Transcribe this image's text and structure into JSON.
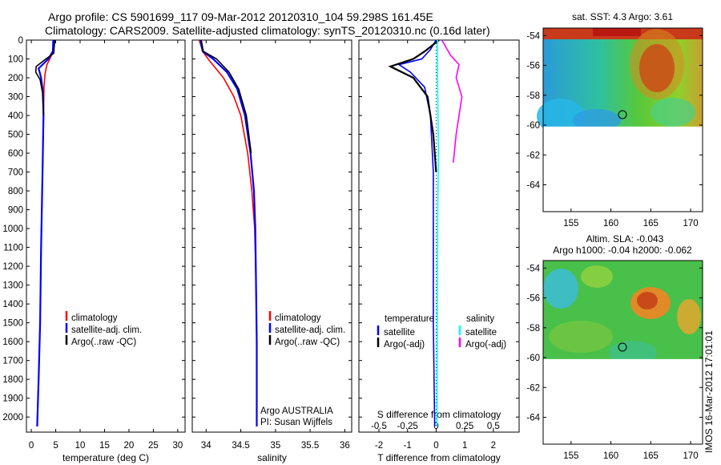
{
  "header": {
    "line1": "Argo profile: CS 5901699_117 09-Mar-2012 20120310_104 59.298S 161.45E",
    "line2": "Climatology: CARS2009. Satellite-adjusted climatology: synTS_20120310.nc (0.16d later)"
  },
  "side_text": "IMOS 16-Mar-2012 17:01:01",
  "chart_data": [
    {
      "type": "line",
      "id": "temperature",
      "xlabel": "temperature (deg C)",
      "ylabel": "",
      "xlim": [
        -1,
        31.5
      ],
      "ylim": [
        2080,
        0
      ],
      "xticks": [
        0,
        5,
        10,
        15,
        20,
        25,
        30
      ],
      "yticks": [
        0,
        100,
        200,
        300,
        400,
        500,
        600,
        700,
        800,
        900,
        1000,
        1100,
        1200,
        1300,
        1400,
        1500,
        1600,
        1700,
        1800,
        1900,
        2000
      ],
      "legend": [
        "climatology",
        "satellite-adj. clim.",
        "Argo(..raw -QC)"
      ],
      "legend_location": "lower-center",
      "series": [
        {
          "name": "climatology",
          "color": "#ff0000",
          "points": [
            [
              4.6,
              0
            ],
            [
              4.5,
              60
            ],
            [
              3.8,
              100
            ],
            [
              3.2,
              130
            ],
            [
              2.8,
              180
            ],
            [
              2.6,
              250
            ],
            [
              2.5,
              400
            ],
            [
              2.3,
              700
            ],
            [
              2.0,
              1100
            ],
            [
              1.8,
              1500
            ],
            [
              1.5,
              1800
            ],
            [
              1.2,
              2050
            ]
          ]
        },
        {
          "name": "satellite-adj. clim.",
          "color": "#0000ff",
          "points": [
            [
              4.5,
              0
            ],
            [
              4.4,
              60
            ],
            [
              3.5,
              100
            ],
            [
              1.5,
              150
            ],
            [
              2.0,
              200
            ],
            [
              2.4,
              280
            ],
            [
              2.5,
              400
            ],
            [
              2.3,
              700
            ],
            [
              2.0,
              1100
            ],
            [
              1.8,
              1500
            ],
            [
              1.5,
              1800
            ],
            [
              1.2,
              2050
            ]
          ]
        },
        {
          "name": "Argo(..raw -QC)",
          "color": "#000000",
          "points": [
            [
              4.8,
              0
            ],
            [
              4.6,
              70
            ],
            [
              3.0,
              100
            ],
            [
              1.0,
              140
            ],
            [
              0.9,
              170
            ],
            [
              1.8,
              210
            ],
            [
              2.3,
              280
            ],
            [
              2.5,
              400
            ]
          ]
        }
      ]
    },
    {
      "type": "line",
      "id": "salinity",
      "xlabel": "salinity",
      "ylabel": "",
      "xlim": [
        33.8,
        36.1
      ],
      "ylim": [
        2080,
        0
      ],
      "xticks": [
        34,
        34.5,
        35,
        35.5,
        36
      ],
      "xticklabels": [
        "34",
        "34.5",
        "35",
        "35.5",
        "36"
      ],
      "legend": [
        "climatology",
        "satellite-adj. clim.",
        "Argo(..raw -QC)"
      ],
      "legend_location": "lower-right",
      "annotation": [
        "Argo AUSTRALIA",
        "PI: Susan Wijffels"
      ],
      "series": [
        {
          "name": "climatology",
          "color": "#ff0000",
          "points": [
            [
              33.9,
              0
            ],
            [
              33.95,
              60
            ],
            [
              34.05,
              110
            ],
            [
              34.25,
              200
            ],
            [
              34.4,
              300
            ],
            [
              34.5,
              400
            ],
            [
              34.6,
              600
            ],
            [
              34.66,
              800
            ],
            [
              34.7,
              1000
            ],
            [
              34.72,
              1300
            ],
            [
              34.73,
              1600
            ],
            [
              34.73,
              2050
            ]
          ]
        },
        {
          "name": "satellite-adj. clim.",
          "color": "#0000ff",
          "points": [
            [
              33.92,
              0
            ],
            [
              33.95,
              60
            ],
            [
              34.1,
              100
            ],
            [
              34.3,
              170
            ],
            [
              34.45,
              260
            ],
            [
              34.56,
              400
            ],
            [
              34.64,
              600
            ],
            [
              34.69,
              800
            ],
            [
              34.71,
              1000
            ],
            [
              34.72,
              1300
            ],
            [
              34.73,
              1600
            ],
            [
              34.73,
              2050
            ]
          ]
        },
        {
          "name": "Argo(..raw -QC)",
          "color": "#000000",
          "points": [
            [
              33.93,
              0
            ],
            [
              33.96,
              60
            ],
            [
              34.15,
              100
            ],
            [
              34.33,
              170
            ],
            [
              34.47,
              260
            ],
            [
              34.58,
              400
            ],
            [
              34.65,
              600
            ]
          ]
        }
      ]
    },
    {
      "type": "line",
      "id": "difference",
      "xlabel": "T difference from climatology",
      "xlabel_top": "S difference from climatology",
      "xlim": [
        -2.7,
        2.9
      ],
      "ylim": [
        2080,
        0
      ],
      "xticks": [
        -2,
        -1,
        0,
        1,
        2
      ],
      "s_ticks": [
        -0.5,
        -0.25,
        0,
        0.25,
        0.5
      ],
      "s_ticklabels": [
        "-0.5",
        "-0.25",
        "0",
        "0.25",
        "0.5"
      ],
      "legend_left_title": "temperature",
      "legend_right_title": "salinity",
      "legend": [
        "satellite",
        "Argo(-adj)",
        "satellite",
        "Argo(-adj)"
      ],
      "series": [
        {
          "name": "satellite",
          "color": "#0000ff",
          "points": [
            [
              0,
              0
            ],
            [
              -0.2,
              50
            ],
            [
              -0.5,
              100
            ],
            [
              -1.3,
              130
            ],
            [
              -0.9,
              170
            ],
            [
              -0.4,
              250
            ],
            [
              -0.2,
              400
            ],
            [
              -0.1,
              700
            ],
            [
              -0.1,
              1500
            ],
            [
              -0.05,
              2050
            ]
          ]
        },
        {
          "name": "Argo(-adj)",
          "color": "#000000",
          "points": [
            [
              0.1,
              0
            ],
            [
              -0.4,
              60
            ],
            [
              -0.8,
              100
            ],
            [
              -1.6,
              140
            ],
            [
              -0.8,
              200
            ],
            [
              -0.3,
              300
            ],
            [
              -0.1,
              500
            ],
            [
              0,
              700
            ]
          ]
        },
        {
          "name": "satellite",
          "color": "#00ffff",
          "points": [
            [
              0.05,
              0
            ],
            [
              0.05,
              200
            ],
            [
              0.08,
              600
            ],
            [
              0.05,
              1000
            ],
            [
              0.03,
              2050
            ]
          ]
        },
        {
          "name": "Argo(-adj)",
          "color": "#ff00ff",
          "points": [
            [
              0.2,
              0
            ],
            [
              0.5,
              80
            ],
            [
              0.8,
              130
            ],
            [
              0.7,
              200
            ],
            [
              0.9,
              300
            ],
            [
              0.8,
              400
            ],
            [
              0.7,
              500
            ],
            [
              0.6,
              650
            ]
          ]
        }
      ]
    },
    {
      "type": "heatmap",
      "id": "sst_map",
      "title": "sat. SST: 4.3 Argo: 3.61",
      "xlim": [
        151.5,
        171.5
      ],
      "ylim": [
        -65.8,
        -53.5
      ],
      "xticks": [
        155,
        160,
        165,
        170
      ],
      "yticks": [
        -54,
        -56,
        -58,
        -60,
        -62,
        -64
      ],
      "data_extent_lat": [
        -60.1,
        -53.5
      ],
      "float_position": [
        161.45,
        -59.3
      ]
    },
    {
      "type": "heatmap",
      "id": "sla_map",
      "title": "Altim. SLA: -0.043",
      "subtitle": "Argo h1000: -0.04 h2000: -0.062",
      "xlim": [
        151.5,
        171.5
      ],
      "ylim": [
        -65.8,
        -53.5
      ],
      "xticks": [
        155,
        160,
        165,
        170
      ],
      "yticks": [
        -54,
        -56,
        -58,
        -60,
        -62,
        -64
      ],
      "data_extent_lat": [
        -60.1,
        -53.5
      ],
      "float_position": [
        161.45,
        -59.3
      ]
    }
  ]
}
